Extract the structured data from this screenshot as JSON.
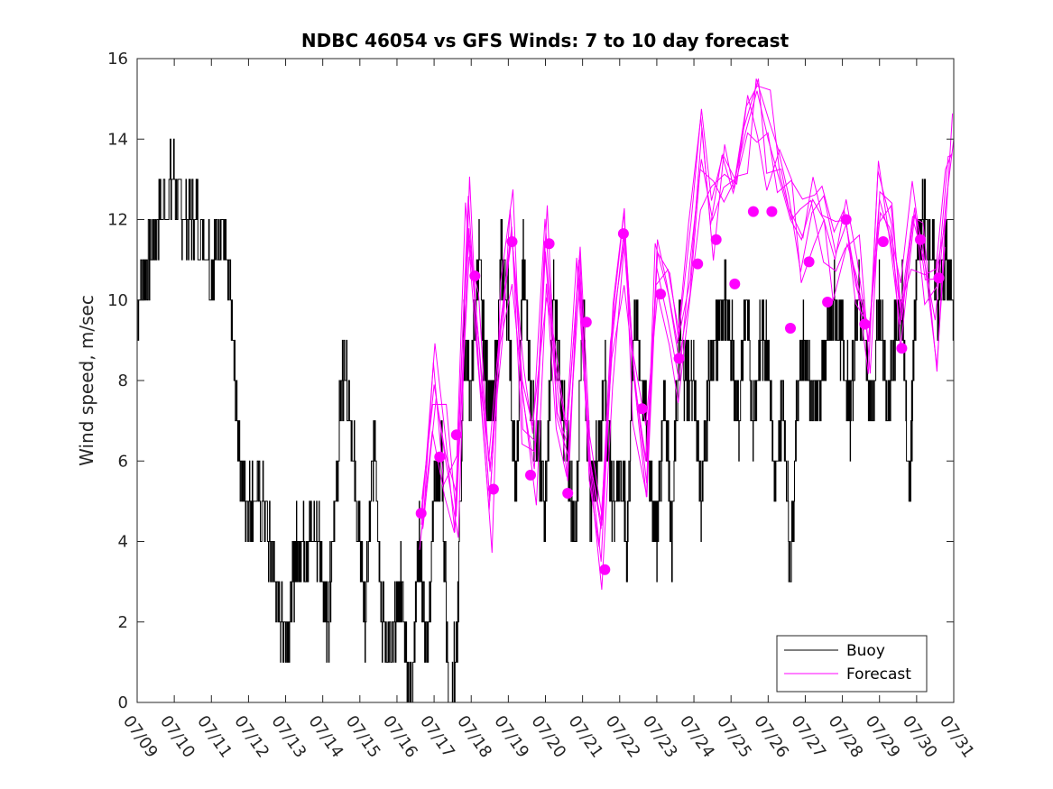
{
  "chart_data": {
    "type": "line",
    "title": "NDBC 46054 vs GFS Winds: 7 to 10 day forecast",
    "xlabel": "",
    "ylabel": "Wind speed, m/sec",
    "x_tick_labels": [
      "07/09",
      "07/10",
      "07/11",
      "07/12",
      "07/13",
      "07/14",
      "07/15",
      "07/16",
      "07/17",
      "07/18",
      "07/19",
      "07/20",
      "07/21",
      "07/22",
      "07/23",
      "07/24",
      "07/25",
      "07/26",
      "07/27",
      "07/28",
      "07/29",
      "07/30",
      "07/31"
    ],
    "y_ticks": [
      0,
      2,
      4,
      6,
      8,
      10,
      12,
      14,
      16
    ],
    "ylim": [
      0,
      16
    ],
    "xlim_days": [
      9,
      31
    ],
    "grid": false,
    "legend": {
      "placement": "bottom-right",
      "entries": [
        {
          "label": "Buoy",
          "color": "#000000"
        },
        {
          "label": "Forecast",
          "color": "#ff00ff"
        }
      ]
    },
    "series": [
      {
        "name": "Buoy",
        "color": "#000000",
        "style": "line",
        "x_days": [
          9.0,
          9.3,
          9.6,
          10.0,
          10.3,
          10.6,
          11.0,
          11.25,
          11.5,
          11.7,
          11.9,
          12.1,
          12.4,
          12.7,
          12.9,
          13.1,
          13.3,
          13.6,
          13.9,
          14.15,
          14.4,
          14.6,
          14.9,
          15.15,
          15.4,
          15.6,
          15.85,
          16.1,
          16.35,
          16.6,
          16.8,
          17.0,
          17.2,
          17.4,
          17.6,
          17.8,
          18.0,
          18.2,
          18.4,
          18.6,
          18.8,
          19.0,
          19.2,
          19.4,
          19.6,
          19.8,
          20.0,
          20.2,
          20.4,
          20.6,
          20.8,
          21.0,
          21.2,
          21.4,
          21.6,
          21.8,
          22.0,
          22.2,
          22.4,
          22.6,
          22.8,
          23.0,
          23.2,
          23.4,
          23.6,
          23.8,
          24.0,
          24.2,
          24.4,
          24.6,
          24.8,
          25.0,
          25.2,
          25.4,
          25.6,
          25.8,
          26.0,
          26.2,
          26.4,
          26.6,
          26.8,
          27.0,
          27.2,
          27.4,
          27.6,
          27.8,
          28.0,
          28.2,
          28.4,
          28.6,
          28.8,
          29.0,
          29.2,
          29.4,
          29.6,
          29.8,
          30.0,
          30.2,
          30.4,
          30.6,
          30.8,
          31.0
        ],
        "values": [
          10,
          11,
          12,
          13,
          12,
          12,
          11,
          12,
          10,
          7,
          5,
          5,
          5,
          3,
          2,
          2,
          4,
          4,
          4,
          2,
          6,
          9,
          5,
          2,
          7,
          2,
          1,
          3,
          0,
          4,
          1,
          5,
          6,
          0,
          1,
          9,
          8,
          11,
          8,
          7,
          11,
          10,
          5,
          11,
          8,
          6,
          5,
          10,
          8,
          6,
          4,
          10,
          5,
          6,
          8,
          5,
          6,
          4,
          10,
          8,
          6,
          4,
          8,
          4,
          9,
          8,
          8,
          5,
          8,
          9,
          10,
          9,
          7,
          10,
          7,
          9,
          9,
          5,
          8,
          3,
          8,
          9,
          7,
          8,
          9,
          10,
          9,
          7,
          10,
          9,
          7,
          10,
          7,
          9,
          10,
          5,
          11,
          12,
          11,
          10,
          11,
          10
        ]
      },
      {
        "name": "Forecast",
        "color": "#ff00ff",
        "style": "markers",
        "x_days": [
          16.65,
          17.15,
          17.6,
          18.1,
          18.6,
          19.1,
          19.6,
          20.1,
          20.6,
          21.1,
          21.6,
          22.1,
          22.6,
          23.1,
          23.6,
          24.1,
          24.6,
          25.1,
          25.6,
          26.1,
          26.6,
          27.1,
          27.6,
          28.1,
          28.6,
          29.1,
          29.6,
          30.1,
          30.6
        ],
        "values": [
          4.7,
          6.1,
          6.65,
          10.6,
          5.3,
          11.45,
          5.65,
          11.4,
          5.2,
          9.45,
          3.3,
          11.65,
          7.3,
          10.15,
          8.55,
          10.9,
          11.5,
          10.4,
          12.2,
          12.2,
          9.3,
          10.95,
          9.95,
          12.0,
          9.4,
          11.45,
          8.8,
          11.5,
          10.55
        ]
      },
      {
        "name": "Forecast",
        "color": "#ff00ff",
        "style": "line",
        "ensemble_x_days": [
          16.65,
          17.0,
          17.3,
          17.6,
          17.9,
          18.2,
          18.5,
          18.8,
          19.1,
          19.4,
          19.7,
          20.0,
          20.3,
          20.6,
          20.9,
          21.2,
          21.5,
          21.8,
          22.1,
          22.4,
          22.7,
          23.0,
          23.3,
          23.6,
          23.9,
          24.2,
          24.5,
          24.8,
          25.1,
          25.4,
          25.7,
          26.0,
          26.3,
          26.6,
          26.9,
          27.2,
          27.5,
          27.8,
          28.1,
          28.4,
          28.7,
          29.0,
          29.3,
          29.6,
          29.9,
          30.2,
          30.5,
          30.8,
          31.0
        ],
        "ensemble_members": [
          [
            4.7,
            7.9,
            6.2,
            5.2,
            11.9,
            9.0,
            5.0,
            9.5,
            11.6,
            7.5,
            5.8,
            11.2,
            8.0,
            5.5,
            11.0,
            6.0,
            3.5,
            9.0,
            11.6,
            8.0,
            6.0,
            10.8,
            9.5,
            8.0,
            11.0,
            13.5,
            12.0,
            12.8,
            13.0,
            14.2,
            15.2,
            14.0,
            13.0,
            12.0,
            11.5,
            12.5,
            12.0,
            11.0,
            12.5,
            11.0,
            9.0,
            12.5,
            11.5,
            9.5,
            12.0,
            11.0,
            9.5,
            12.5,
            14.0
          ],
          null,
          null,
          null,
          null,
          null
        ]
      }
    ]
  }
}
